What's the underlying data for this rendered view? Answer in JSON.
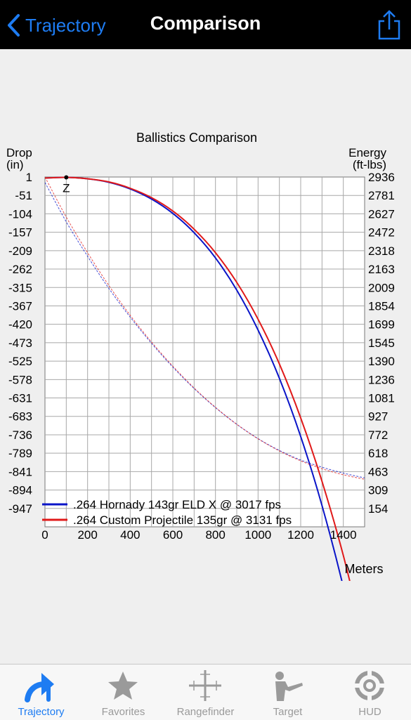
{
  "nav": {
    "back_label": "Trajectory",
    "title": "Comparison"
  },
  "chart_data": {
    "type": "line",
    "title": "Ballistics Comparison",
    "left_axis_label": [
      "Drop",
      "(in)"
    ],
    "right_axis_label": [
      "Energy",
      "(ft-lbs)"
    ],
    "xlabel": "Meters",
    "x_ticks": [
      "0",
      "200",
      "400",
      "600",
      "800",
      "1000",
      "1200",
      "1400"
    ],
    "xlim": [
      0,
      1500
    ],
    "drop_ticks": [
      "1",
      "-51",
      "-104",
      "-157",
      "-209",
      "-262",
      "-315",
      "-367",
      "-420",
      "-473",
      "-525",
      "-578",
      "-631",
      "-683",
      "-736",
      "-789",
      "-841",
      "-894",
      "-947"
    ],
    "drop_lim": [
      1,
      -998
    ],
    "energy_ticks": [
      "2936",
      "2781",
      "2627",
      "2472",
      "2318",
      "2163",
      "2009",
      "1854",
      "1699",
      "1545",
      "1390",
      "1236",
      "1081",
      "927",
      "772",
      "618",
      "463",
      "309",
      "154"
    ],
    "energy_lim": [
      2936,
      -1
    ],
    "zero_marker": {
      "label": "Z",
      "x": 100,
      "drop": 0
    },
    "x": [
      0,
      100,
      200,
      300,
      400,
      500,
      600,
      700,
      800,
      900,
      1000,
      1100,
      1200,
      1300,
      1400,
      1500
    ],
    "series": [
      {
        "name": ".264 Hornady  143gr ELD X @ 3017 fps",
        "color": "#0a14c8",
        "drop": [
          -2,
          0,
          -4,
          -14,
          -33,
          -62,
          -103,
          -158,
          -230,
          -322,
          -436,
          -574,
          -740,
          -937,
          -1170,
          -1440
        ],
        "energy": [
          2890,
          2560,
          2270,
          2000,
          1760,
          1540,
          1340,
          1160,
          1000,
          860,
          740,
          640,
          560,
          500,
          450,
          410
        ]
      },
      {
        "name": ".264 Custom Projectile 135gr @ 3131 fps",
        "color": "#e01a1a",
        "drop": [
          -2,
          0,
          -4,
          -13,
          -31,
          -58,
          -96,
          -148,
          -215,
          -300,
          -405,
          -533,
          -687,
          -868,
          -1080,
          -1330
        ],
        "energy": [
          2936,
          2600,
          2300,
          2025,
          1775,
          1550,
          1348,
          1165,
          1002,
          860,
          738,
          636,
          553,
          487,
          436,
          398
        ]
      }
    ]
  },
  "tabbar": {
    "items": [
      {
        "label": "Trajectory",
        "icon": "trajectory-arrow-icon",
        "active": true
      },
      {
        "label": "Favorites",
        "icon": "star-icon",
        "active": false
      },
      {
        "label": "Rangefinder",
        "icon": "crosshair-icon",
        "active": false
      },
      {
        "label": "Target",
        "icon": "shooter-icon",
        "active": false
      },
      {
        "label": "HUD",
        "icon": "hud-reticle-icon",
        "active": false
      }
    ],
    "active_color": "#1e7cf2",
    "inactive_color": "#9a9a9a"
  }
}
